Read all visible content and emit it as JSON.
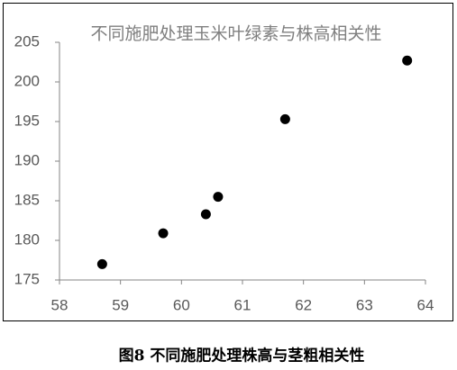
{
  "chart_data": {
    "type": "scatter",
    "title": "不同施肥处理玉米叶绿素与株高相关性",
    "x": [
      58.7,
      59.7,
      60.4,
      60.6,
      61.7,
      63.7
    ],
    "series": [
      {
        "color": "#000000",
        "values": [
          177.0,
          180.9,
          183.3,
          185.5,
          195.3,
          202.7
        ]
      }
    ],
    "xlim": [
      58,
      64
    ],
    "xticks": [
      58,
      59,
      60,
      61,
      62,
      63,
      64
    ],
    "ylim": [
      175,
      205
    ],
    "yticks": [
      175,
      180,
      185,
      190,
      195,
      200,
      205
    ]
  },
  "caption": "图8 不同施肥处理株高与茎粗相关性"
}
